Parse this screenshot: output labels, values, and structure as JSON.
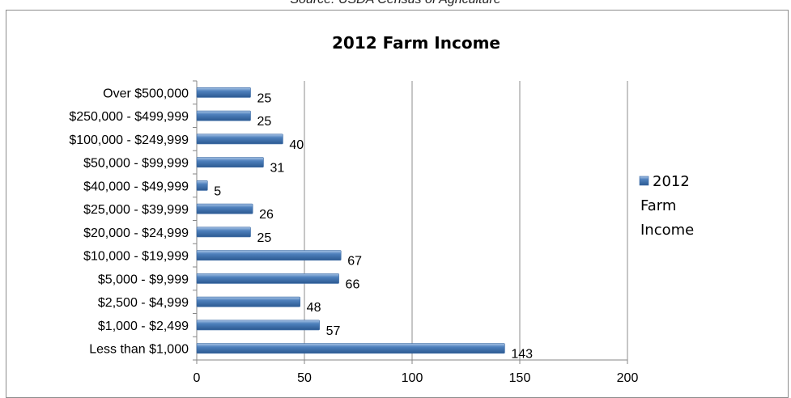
{
  "source_note": "Source: USDA Census of Agriculture",
  "chart_data": {
    "type": "bar",
    "orientation": "horizontal",
    "title": "2012 Farm Income",
    "categories": [
      "Over $500,000",
      "$250,000 - $499,999",
      "$100,000 - $249,999",
      "$50,000 - $99,999",
      "$40,000 - $49,999",
      "$25,000 - $39,999",
      "$20,000 - $24,999",
      "$10,000 - $19,999",
      "$5,000 - $9,999",
      "$2,500 - $4,999",
      "$1,000 - $2,499",
      "Less than $1,000"
    ],
    "series": [
      {
        "name": "2012 Farm Income",
        "values": [
          25,
          25,
          40,
          31,
          5,
          26,
          25,
          67,
          66,
          48,
          57,
          143
        ],
        "color": "#4f81bd"
      }
    ],
    "legend_lines": [
      "2012",
      "Farm",
      "Income"
    ],
    "xlim": [
      0,
      200
    ],
    "xticks": [
      0,
      50,
      100,
      150,
      200
    ],
    "grid": "vertical",
    "legend_position": "right"
  }
}
